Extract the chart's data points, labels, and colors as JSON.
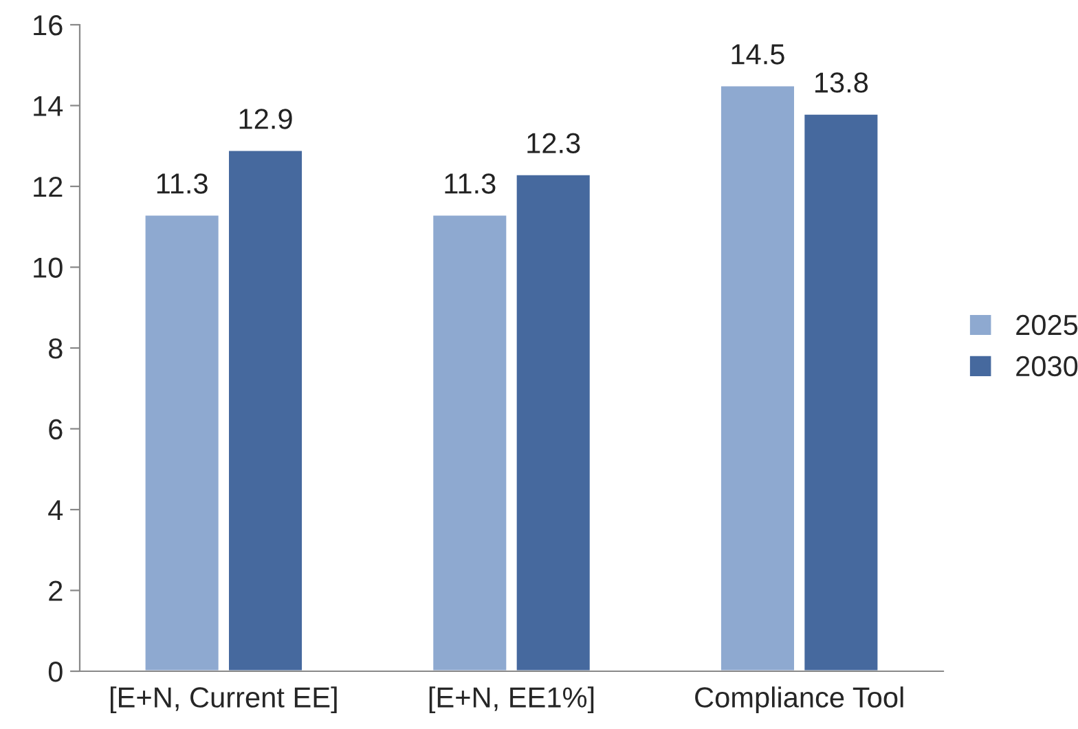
{
  "chart_data": {
    "type": "bar",
    "categories": [
      "[E+N, Current EE]",
      "[E+N, EE1%]",
      "Compliance Tool"
    ],
    "series": [
      {
        "name": "2025",
        "color": "#8ea9d0",
        "values": [
          11.3,
          11.3,
          14.5
        ]
      },
      {
        "name": "2030",
        "color": "#46699e",
        "values": [
          12.9,
          12.3,
          13.8
        ]
      }
    ],
    "ylim": [
      0,
      16
    ],
    "yticks": [
      0,
      2,
      4,
      6,
      8,
      10,
      12,
      14,
      16
    ],
    "data_labels": true,
    "grid": false,
    "legend": "right"
  }
}
